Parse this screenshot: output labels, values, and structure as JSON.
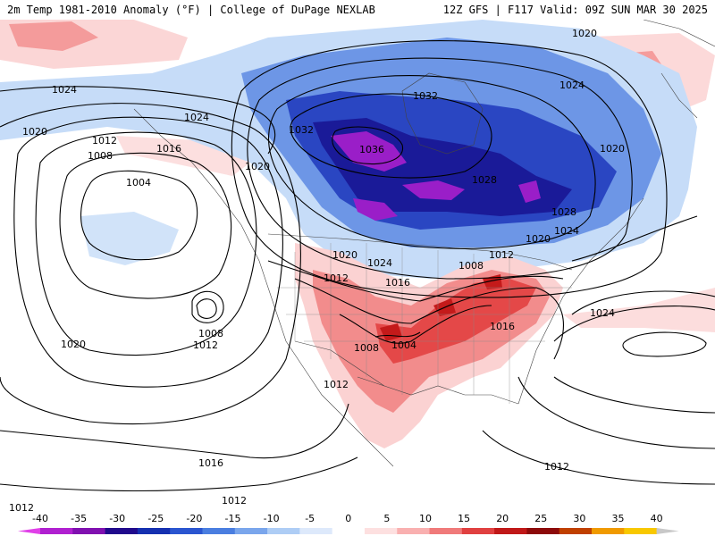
{
  "header": {
    "title_left": "2m Temp 1981-2010 Anomaly (°F) | College of DuPage NEXLAB",
    "title_right": "12Z GFS | F117 Valid: 09Z SUN MAR 30 2025"
  },
  "legend": {
    "ticks": [
      "-40",
      "-35",
      "-30",
      "-25",
      "-20",
      "-15",
      "-10",
      "-5",
      "0",
      "5",
      "10",
      "15",
      "20",
      "25",
      "30",
      "35",
      "40"
    ],
    "colors": [
      "#e040e8",
      "#b020d0",
      "#8010b0",
      "#200a8c",
      "#1530b0",
      "#2a55d0",
      "#4a7ee0",
      "#7aa6ec",
      "#aecdf5",
      "#dde9fb",
      "#ffffff",
      "#fde0e0",
      "#f9b0b0",
      "#f07a7a",
      "#e04040",
      "#c01818",
      "#8c0a0a",
      "#c04000",
      "#f09a00",
      "#f8c800",
      "#c8c8c8"
    ]
  },
  "isobars": {
    "labels": [
      {
        "text": "1020"
      },
      {
        "text": "1024"
      },
      {
        "text": "1024"
      },
      {
        "text": "1020"
      },
      {
        "text": "1012"
      },
      {
        "text": "1008"
      },
      {
        "text": "1016"
      },
      {
        "text": "1004"
      },
      {
        "text": "1020"
      },
      {
        "text": "1032"
      },
      {
        "text": "1036"
      },
      {
        "text": "1032"
      },
      {
        "text": "1028"
      },
      {
        "text": "1028"
      },
      {
        "text": "1024"
      },
      {
        "text": "1024"
      },
      {
        "text": "1020"
      },
      {
        "text": "1020"
      },
      {
        "text": "1024"
      },
      {
        "text": "1020"
      },
      {
        "text": "1008"
      },
      {
        "text": "1012"
      },
      {
        "text": "1012"
      },
      {
        "text": "1016"
      },
      {
        "text": "1016"
      },
      {
        "text": "1008"
      },
      {
        "text": "1004"
      },
      {
        "text": "1008"
      },
      {
        "text": "1012"
      },
      {
        "text": "1020"
      },
      {
        "text": "1024"
      },
      {
        "text": "1012"
      },
      {
        "text": "1016"
      },
      {
        "text": "1012"
      },
      {
        "text": "1012"
      },
      {
        "text": "1012"
      }
    ]
  },
  "colors": {
    "cold_light": "#c6dcf8",
    "cold_mid": "#6d96e6",
    "cold_deep": "#2a46c2",
    "cold_core": "#1a1a98",
    "cold_extreme": "#9a1ec8",
    "warm_light": "#fbd2d2",
    "warm_mid": "#f28c8c",
    "warm_deep": "#e44848",
    "warm_core": "#c41a1a"
  }
}
